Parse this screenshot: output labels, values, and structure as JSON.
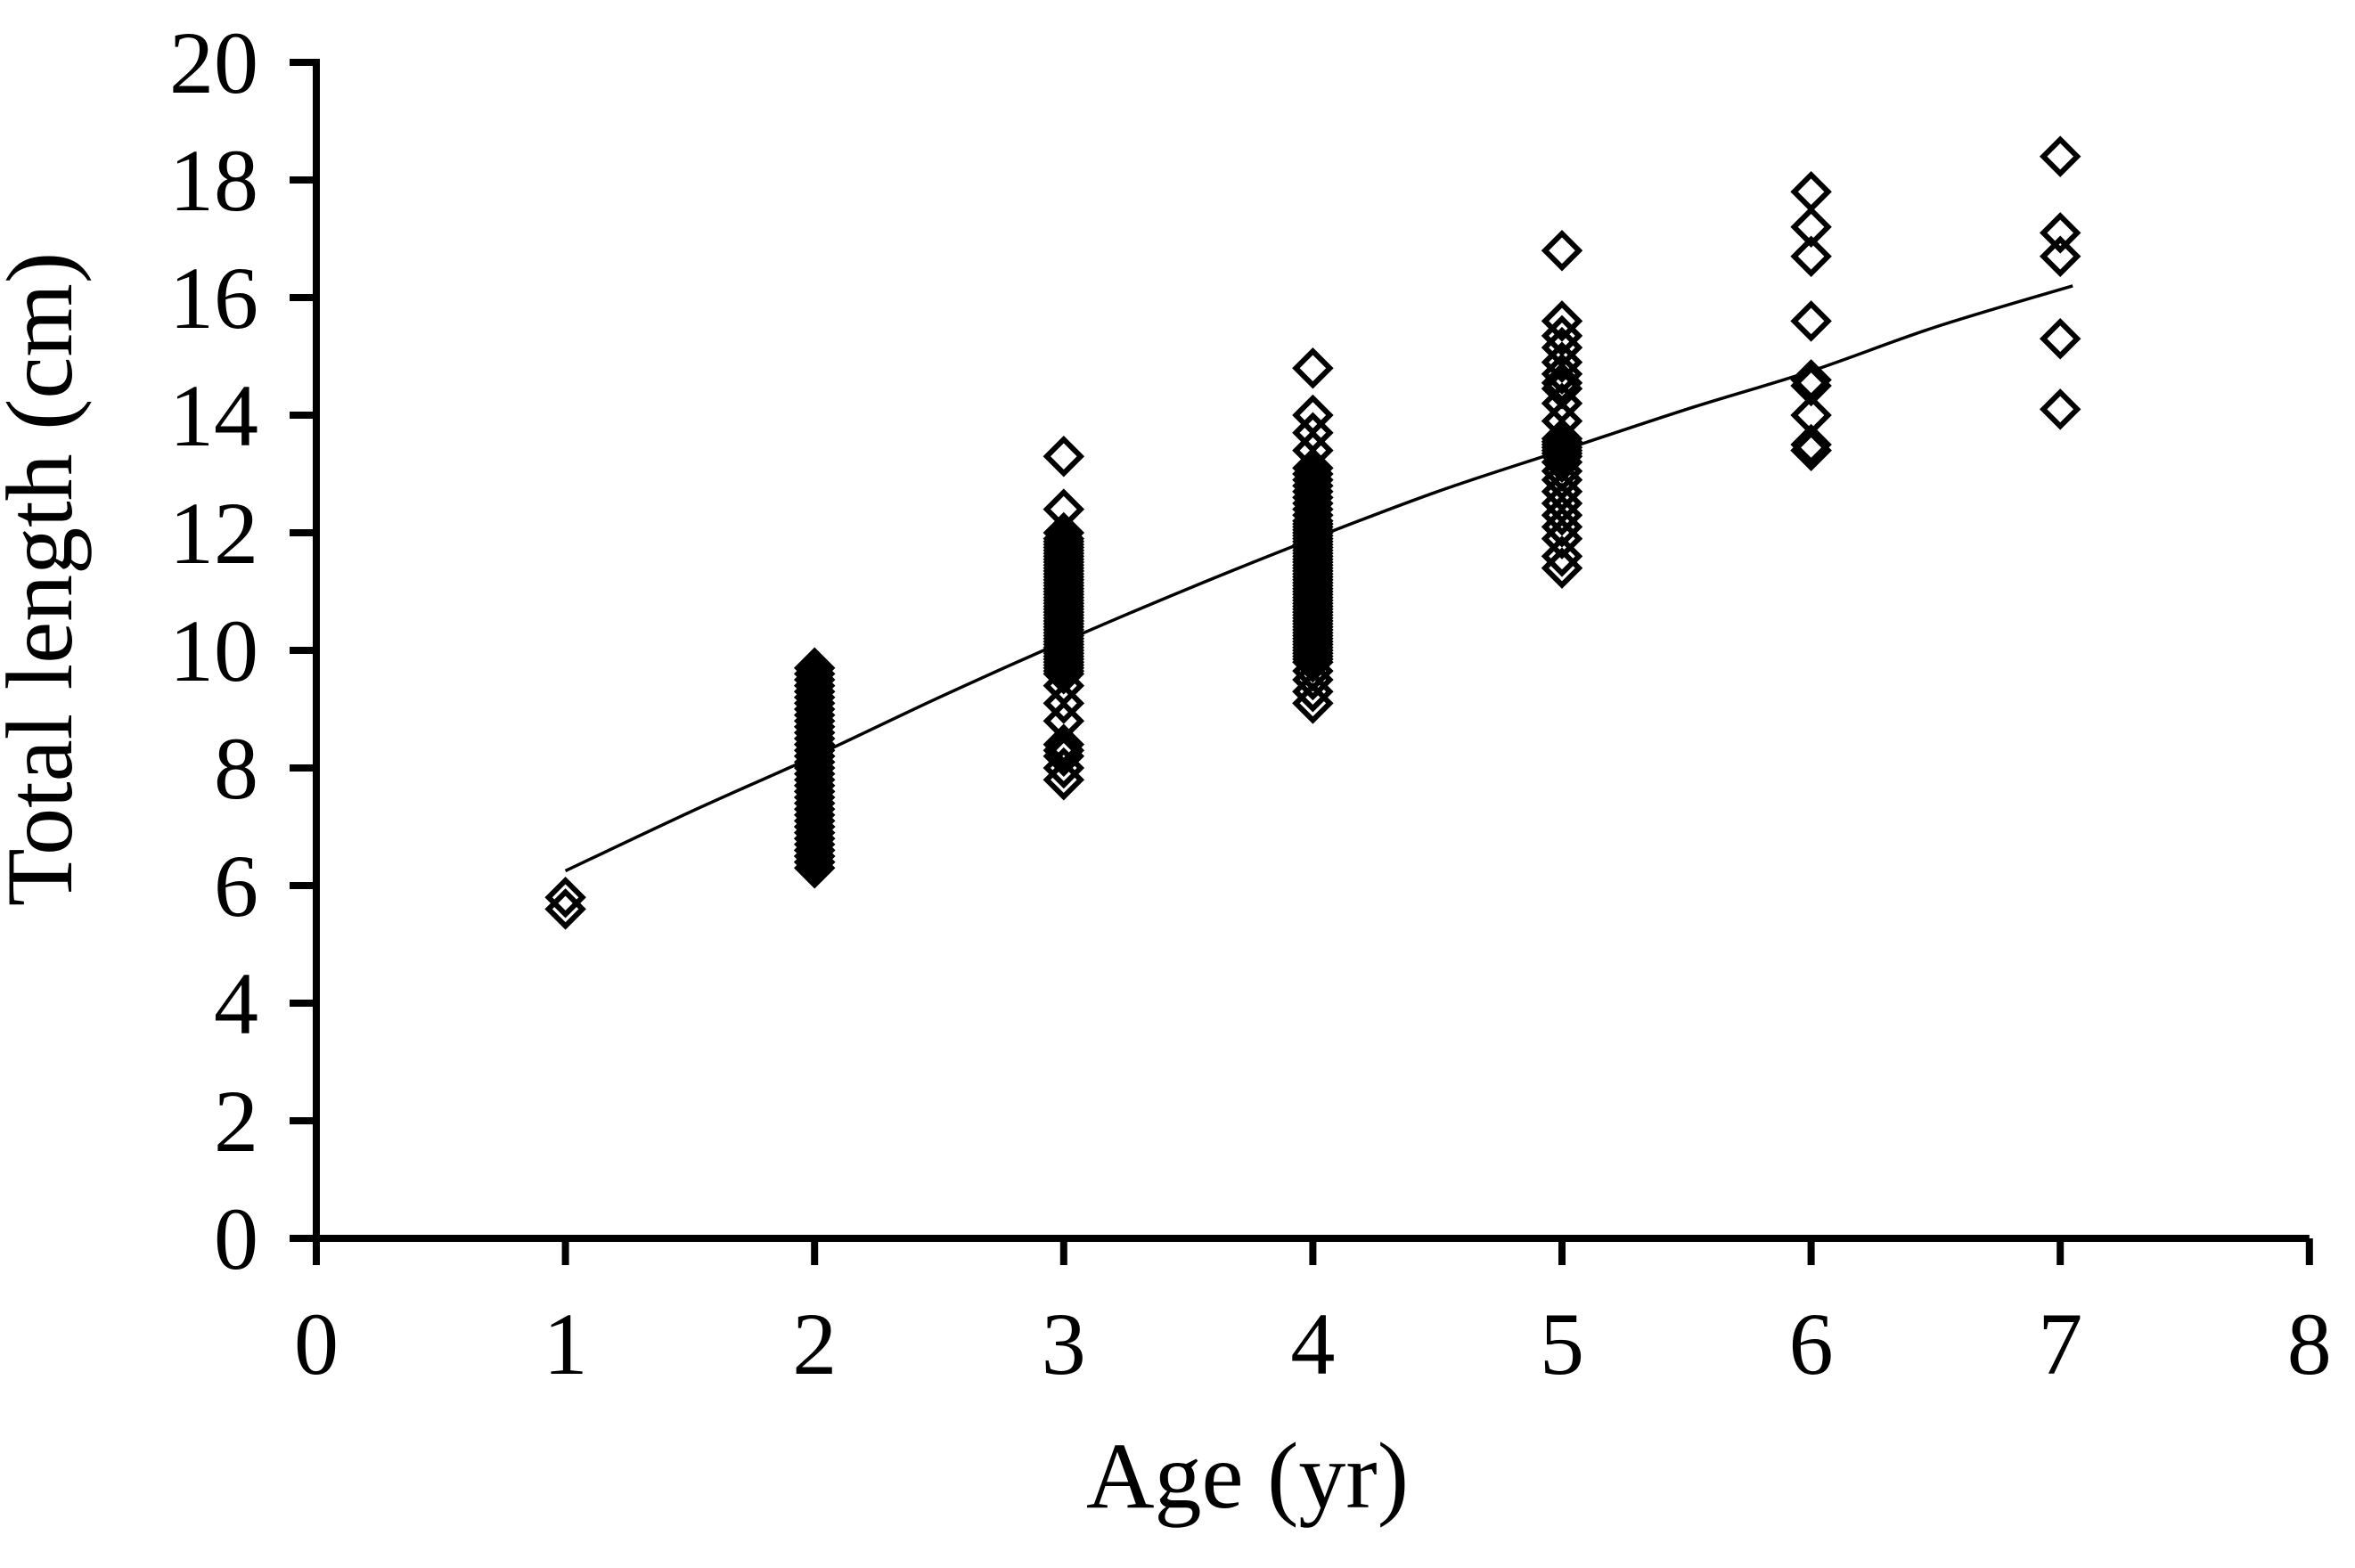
{
  "figure": {
    "background": "#ffffff",
    "ink": "#000000"
  },
  "chart_data": {
    "type": "scatter",
    "title": "",
    "xlabel": "Age (yr)",
    "ylabel": "Total length (cm)",
    "xlim": [
      0,
      8
    ],
    "ylim": [
      0,
      20
    ],
    "x_ticks": [
      0,
      1,
      2,
      3,
      4,
      5,
      6,
      7,
      8
    ],
    "y_ticks": [
      0,
      2,
      4,
      6,
      8,
      10,
      12,
      14,
      16,
      18,
      20
    ],
    "grid": false,
    "legend_position": "none",
    "marker": "open-diamond",
    "series": [
      {
        "name": "Observed length at age",
        "points_by_age": {
          "1": [
            5.6,
            5.8
          ],
          "2": [
            6.3,
            6.4,
            6.4,
            6.5,
            6.5,
            6.6,
            6.6,
            6.7,
            6.8,
            6.8,
            6.9,
            7.0,
            7.0,
            7.1,
            7.2,
            7.3,
            7.4,
            7.5,
            7.6,
            7.7,
            7.8,
            7.9,
            8.0,
            8.1,
            8.2,
            8.2,
            8.3,
            8.4,
            8.5,
            8.6,
            8.7,
            8.8,
            8.9,
            9.0,
            9.1,
            9.2,
            9.3,
            9.4,
            9.5,
            9.6,
            9.7
          ],
          "3": [
            7.8,
            8.0,
            8.2,
            8.3,
            8.4,
            8.8,
            9.1,
            9.4,
            9.6,
            9.65,
            9.7,
            9.75,
            9.8,
            9.85,
            9.9,
            9.95,
            10.0,
            10.05,
            10.1,
            10.15,
            10.2,
            10.25,
            10.3,
            10.35,
            10.4,
            10.45,
            10.5,
            10.55,
            10.6,
            10.65,
            10.7,
            10.75,
            10.8,
            10.85,
            10.9,
            10.95,
            11.0,
            11.05,
            11.1,
            11.15,
            11.2,
            11.25,
            11.3,
            11.35,
            11.4,
            11.45,
            11.5,
            11.55,
            11.6,
            11.65,
            11.7,
            11.75,
            11.8,
            11.85,
            11.9,
            12.0,
            12.4,
            13.3
          ],
          "4": [
            9.1,
            9.3,
            9.5,
            9.65,
            9.8,
            9.85,
            9.9,
            9.95,
            10.0,
            10.05,
            10.1,
            10.15,
            10.2,
            10.25,
            10.3,
            10.35,
            10.4,
            10.45,
            10.5,
            10.55,
            10.6,
            10.65,
            10.7,
            10.75,
            10.8,
            10.85,
            10.9,
            10.95,
            11.0,
            11.05,
            11.1,
            11.15,
            11.2,
            11.25,
            11.3,
            11.35,
            11.4,
            11.45,
            11.5,
            11.55,
            11.6,
            11.65,
            11.7,
            11.75,
            11.8,
            11.85,
            11.9,
            11.95,
            12.0,
            12.05,
            12.1,
            12.15,
            12.2,
            12.3,
            12.4,
            12.5,
            12.6,
            12.7,
            12.8,
            12.9,
            13.0,
            13.1,
            13.4,
            13.7,
            14.0,
            14.8
          ],
          "5": [
            11.4,
            11.6,
            11.9,
            12.1,
            12.3,
            12.5,
            12.7,
            12.9,
            13.05,
            13.2,
            13.3,
            13.35,
            13.4,
            13.45,
            13.5,
            13.55,
            13.6,
            13.9,
            14.2,
            14.45,
            14.55,
            14.7,
            14.9,
            15.15,
            15.35,
            15.6,
            16.8
          ],
          "6": [
            13.4,
            13.4,
            13.5,
            14.0,
            14.5,
            14.6,
            15.6,
            16.7,
            17.2,
            17.8
          ],
          "7": [
            14.1,
            15.3,
            16.7,
            17.1,
            18.4
          ]
        }
      }
    ],
    "fit_curve": {
      "name": "Fitted growth curve",
      "points": [
        [
          1.0,
          6.25
        ],
        [
          1.5,
          7.25
        ],
        [
          2.0,
          8.2
        ],
        [
          2.5,
          9.2
        ],
        [
          3.0,
          10.15
        ],
        [
          3.5,
          11.05
        ],
        [
          4.0,
          11.9
        ],
        [
          4.5,
          12.7
        ],
        [
          5.0,
          13.4
        ],
        [
          5.5,
          14.1
        ],
        [
          6.0,
          14.75
        ],
        [
          6.5,
          15.5
        ],
        [
          7.05,
          16.2
        ]
      ]
    }
  }
}
